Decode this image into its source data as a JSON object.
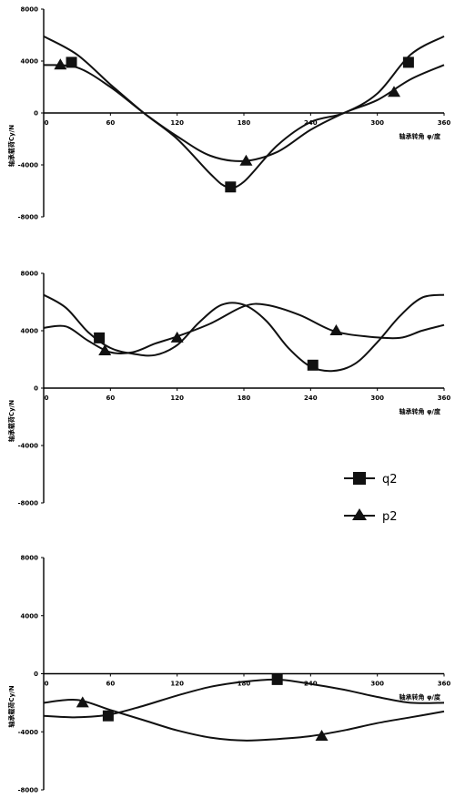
{
  "chart_data": [
    {
      "type": "line",
      "xlabel": "轴承转角 φ/度",
      "ylabel": "轴承载荷Cy/N",
      "xlim": [
        0,
        360
      ],
      "ylim": [
        -8000,
        8000
      ],
      "x_ticks": [
        "0",
        "60",
        "120",
        "180",
        "240",
        "300",
        "360"
      ],
      "y_ticks": [
        "8000",
        "4000",
        "0",
        "-4000",
        "-8000"
      ],
      "series": [
        {
          "name": "q2",
          "marker": "square",
          "x": [
            0,
            30,
            60,
            90,
            120,
            150,
            165,
            180,
            210,
            240,
            270,
            300,
            330,
            360
          ],
          "y": [
            5900,
            4500,
            2200,
            0,
            -2000,
            -4700,
            -5700,
            -5300,
            -2500,
            -700,
            0,
            1500,
            4500,
            5900
          ],
          "marker_x": [
            25,
            168,
            328
          ],
          "marker_y": [
            3900,
            -5700,
            3900
          ]
        },
        {
          "name": "p2",
          "marker": "triangle",
          "x": [
            0,
            30,
            60,
            90,
            120,
            150,
            180,
            210,
            240,
            270,
            300,
            330,
            360
          ],
          "y": [
            3700,
            3500,
            2000,
            0,
            -1800,
            -3300,
            -3700,
            -3000,
            -1300,
            0,
            1000,
            2600,
            3700
          ],
          "marker_x": [
            15,
            182,
            315
          ],
          "marker_y": [
            3700,
            -3700,
            1600
          ]
        }
      ]
    },
    {
      "type": "line",
      "xlabel": "轴承转角 φ/度",
      "ylabel": "轴承载荷Cy/N",
      "xlim": [
        0,
        360
      ],
      "ylim": [
        -8000,
        8000
      ],
      "x_ticks": [
        "0",
        "60",
        "120",
        "180",
        "240",
        "300",
        "360"
      ],
      "y_ticks": [
        "8000",
        "4000",
        "0",
        "-4000",
        "-8000"
      ],
      "series": [
        {
          "name": "q2",
          "marker": "square",
          "x": [
            0,
            20,
            40,
            60,
            80,
            100,
            120,
            140,
            160,
            180,
            200,
            220,
            240,
            260,
            280,
            300,
            320,
            340,
            360
          ],
          "y": [
            6500,
            5600,
            3900,
            2800,
            2400,
            2300,
            3000,
            4600,
            5800,
            5800,
            4700,
            2800,
            1500,
            1200,
            1700,
            3200,
            5000,
            6300,
            6500
          ],
          "marker_x": [
            50,
            242
          ],
          "marker_y": [
            3500,
            1600
          ]
        },
        {
          "name": "p2",
          "marker": "triangle",
          "x": [
            0,
            20,
            40,
            60,
            80,
            100,
            120,
            150,
            180,
            200,
            230,
            260,
            290,
            320,
            340,
            360
          ],
          "y": [
            4200,
            4300,
            3300,
            2500,
            2500,
            3100,
            3600,
            4500,
            5700,
            5800,
            5100,
            4000,
            3600,
            3500,
            4000,
            4400
          ],
          "marker_x": [
            55,
            120,
            263
          ],
          "marker_y": [
            2600,
            3500,
            4000
          ]
        }
      ]
    },
    {
      "type": "line",
      "xlabel": "轴承转角 φ/度",
      "ylabel": "轴承载荷Cy/N",
      "xlim": [
        0,
        360
      ],
      "ylim": [
        -8000,
        8000
      ],
      "x_ticks": [
        "0",
        "60",
        "120",
        "180",
        "240",
        "300",
        "360"
      ],
      "y_ticks": [
        "8000",
        "4000",
        "0",
        "-4000",
        "-8000"
      ],
      "series": [
        {
          "name": "q2",
          "marker": "square",
          "x": [
            0,
            30,
            60,
            90,
            120,
            150,
            180,
            210,
            240,
            270,
            300,
            330,
            360
          ],
          "y": [
            -2900,
            -3000,
            -2800,
            -2200,
            -1500,
            -900,
            -550,
            -400,
            -700,
            -1100,
            -1600,
            -2000,
            -2000
          ],
          "marker_x": [
            58,
            210
          ],
          "marker_y": [
            -2900,
            -400
          ]
        },
        {
          "name": "p2",
          "marker": "triangle",
          "x": [
            0,
            30,
            60,
            90,
            120,
            150,
            180,
            210,
            240,
            270,
            300,
            330,
            360
          ],
          "y": [
            -2000,
            -1800,
            -2500,
            -3200,
            -3900,
            -4400,
            -4600,
            -4500,
            -4300,
            -3900,
            -3400,
            -3000,
            -2600
          ],
          "marker_x": [
            35,
            250
          ],
          "marker_y": [
            -2000,
            -4300
          ]
        }
      ]
    }
  ],
  "legend": {
    "items": [
      {
        "label": "q2",
        "marker": "square"
      },
      {
        "label": "p2",
        "marker": "triangle"
      }
    ]
  }
}
